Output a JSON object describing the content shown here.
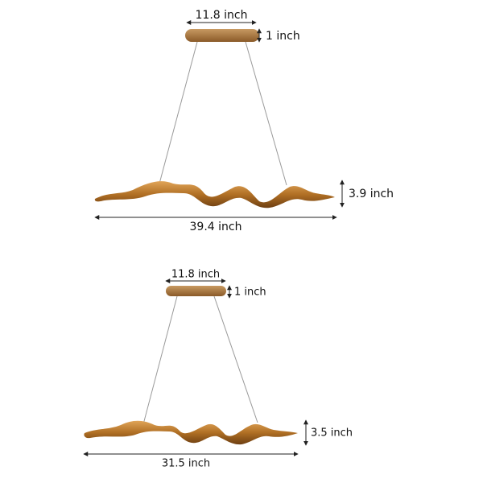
{
  "lamps": [
    {
      "canopy_width": "11.8 inch",
      "canopy_height": "1 inch",
      "height": "3.9 inch",
      "length": "39.4 inch"
    },
    {
      "canopy_width": "11.8 inch",
      "canopy_height": "1 inch",
      "height": "3.5 inch",
      "length": "31.5 inch"
    }
  ]
}
